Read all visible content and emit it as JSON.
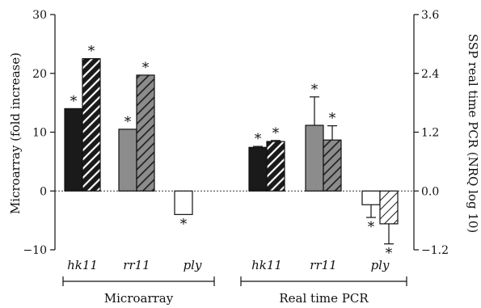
{
  "chart_data": {
    "type": "bar",
    "left_axis": {
      "label": "Microarray (fold increase)",
      "ylim": [
        -10,
        30
      ],
      "ticks": [
        "−10",
        "0",
        "10",
        "20",
        "30"
      ],
      "tick_values": [
        -10,
        0,
        10,
        20,
        30
      ]
    },
    "right_axis": {
      "label": "SSP real time PCR (NRQ log 10)",
      "ylim": [
        -1.2,
        3.6
      ],
      "ticks": [
        "−1.2",
        "0.0",
        "1.2",
        "2.4",
        "3.6"
      ],
      "tick_values": [
        -1.2,
        0.0,
        1.2,
        2.4,
        3.6
      ]
    },
    "groups": [
      {
        "label": "Microarray",
        "axis": "left",
        "genes": [
          {
            "label": "hk11",
            "color": "#1a1a1a",
            "bars": [
              {
                "value": 14.0,
                "pattern": "solid",
                "star": "*"
              },
              {
                "value": 22.5,
                "pattern": "hatched",
                "star": "*"
              }
            ]
          },
          {
            "label": "rr11",
            "color": "#8c8c8c",
            "bars": [
              {
                "value": 10.5,
                "pattern": "solid",
                "star": "*"
              },
              {
                "value": 19.7,
                "pattern": "hatched",
                "star": "*"
              }
            ]
          },
          {
            "label": "ply",
            "color": "#ffffff",
            "bars": [
              {
                "value": -4.0,
                "pattern": "solid",
                "star": "*"
              }
            ]
          }
        ]
      },
      {
        "label": "Real time PCR",
        "axis": "right",
        "genes": [
          {
            "label": "hk11",
            "color": "#1a1a1a",
            "bars": [
              {
                "value": 0.89,
                "error": 0.02,
                "pattern": "solid",
                "star": "*"
              },
              {
                "value": 1.01,
                "error": 0.02,
                "pattern": "hatched",
                "star": "*"
              }
            ]
          },
          {
            "label": "rr11",
            "color": "#8c8c8c",
            "bars": [
              {
                "value": 1.34,
                "error": 0.58,
                "pattern": "solid",
                "star": "*"
              },
              {
                "value": 1.04,
                "error": 0.29,
                "pattern": "hatched",
                "star": "*"
              }
            ]
          },
          {
            "label": "ply",
            "color": "#ffffff",
            "bars": [
              {
                "value": -0.28,
                "error": 0.26,
                "pattern": "solid",
                "star": "*"
              },
              {
                "value": -0.67,
                "error": 0.41,
                "pattern": "hatched",
                "star": "*"
              }
            ]
          }
        ]
      }
    ]
  }
}
